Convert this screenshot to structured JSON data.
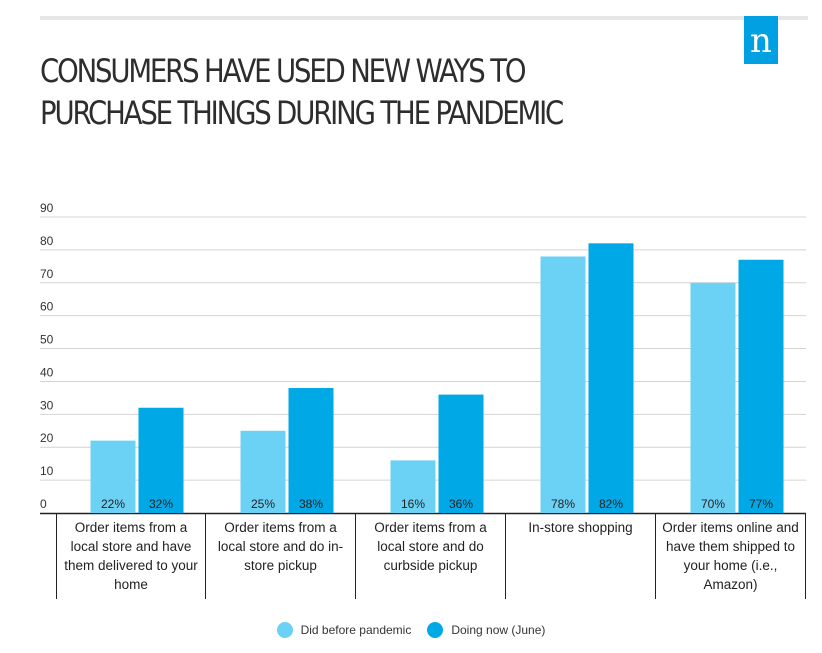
{
  "header": {
    "title": "CONSUMERS HAVE USED NEW WAYS TO PURCHASE THINGS DURING THE PANDEMIC",
    "logo_letter": "n"
  },
  "colors": {
    "accent": "#00a0e3",
    "series_1": "#6cd2f5",
    "series_2": "#00a9e6"
  },
  "chart_data": {
    "type": "bar",
    "title": "CONSUMERS HAVE USED NEW WAYS TO PURCHASE THINGS DURING THE PANDEMIC",
    "categories": [
      "Order items from a local store and have them delivered to your home",
      "Order items from a local store and do in-store pickup",
      "Order items from a local store and do curbside pickup",
      "In-store shopping",
      "Order items online and have them shipped to your home (i.e., Amazon)"
    ],
    "series": [
      {
        "name": "Did before pandemic",
        "values": [
          22,
          25,
          16,
          78,
          70
        ],
        "labels": [
          "22%",
          "25%",
          "16%",
          "78%",
          "70%"
        ]
      },
      {
        "name": "Doing now (June)",
        "values": [
          32,
          38,
          36,
          82,
          77
        ],
        "labels": [
          "32%",
          "38%",
          "36%",
          "82%",
          "77%"
        ]
      }
    ],
    "y_ticks": [
      "0",
      "10",
      "20",
      "30",
      "40",
      "50",
      "60",
      "70",
      "80",
      "90"
    ],
    "ylim": [
      0,
      90
    ],
    "grid": true,
    "legend_position": "bottom-center"
  }
}
